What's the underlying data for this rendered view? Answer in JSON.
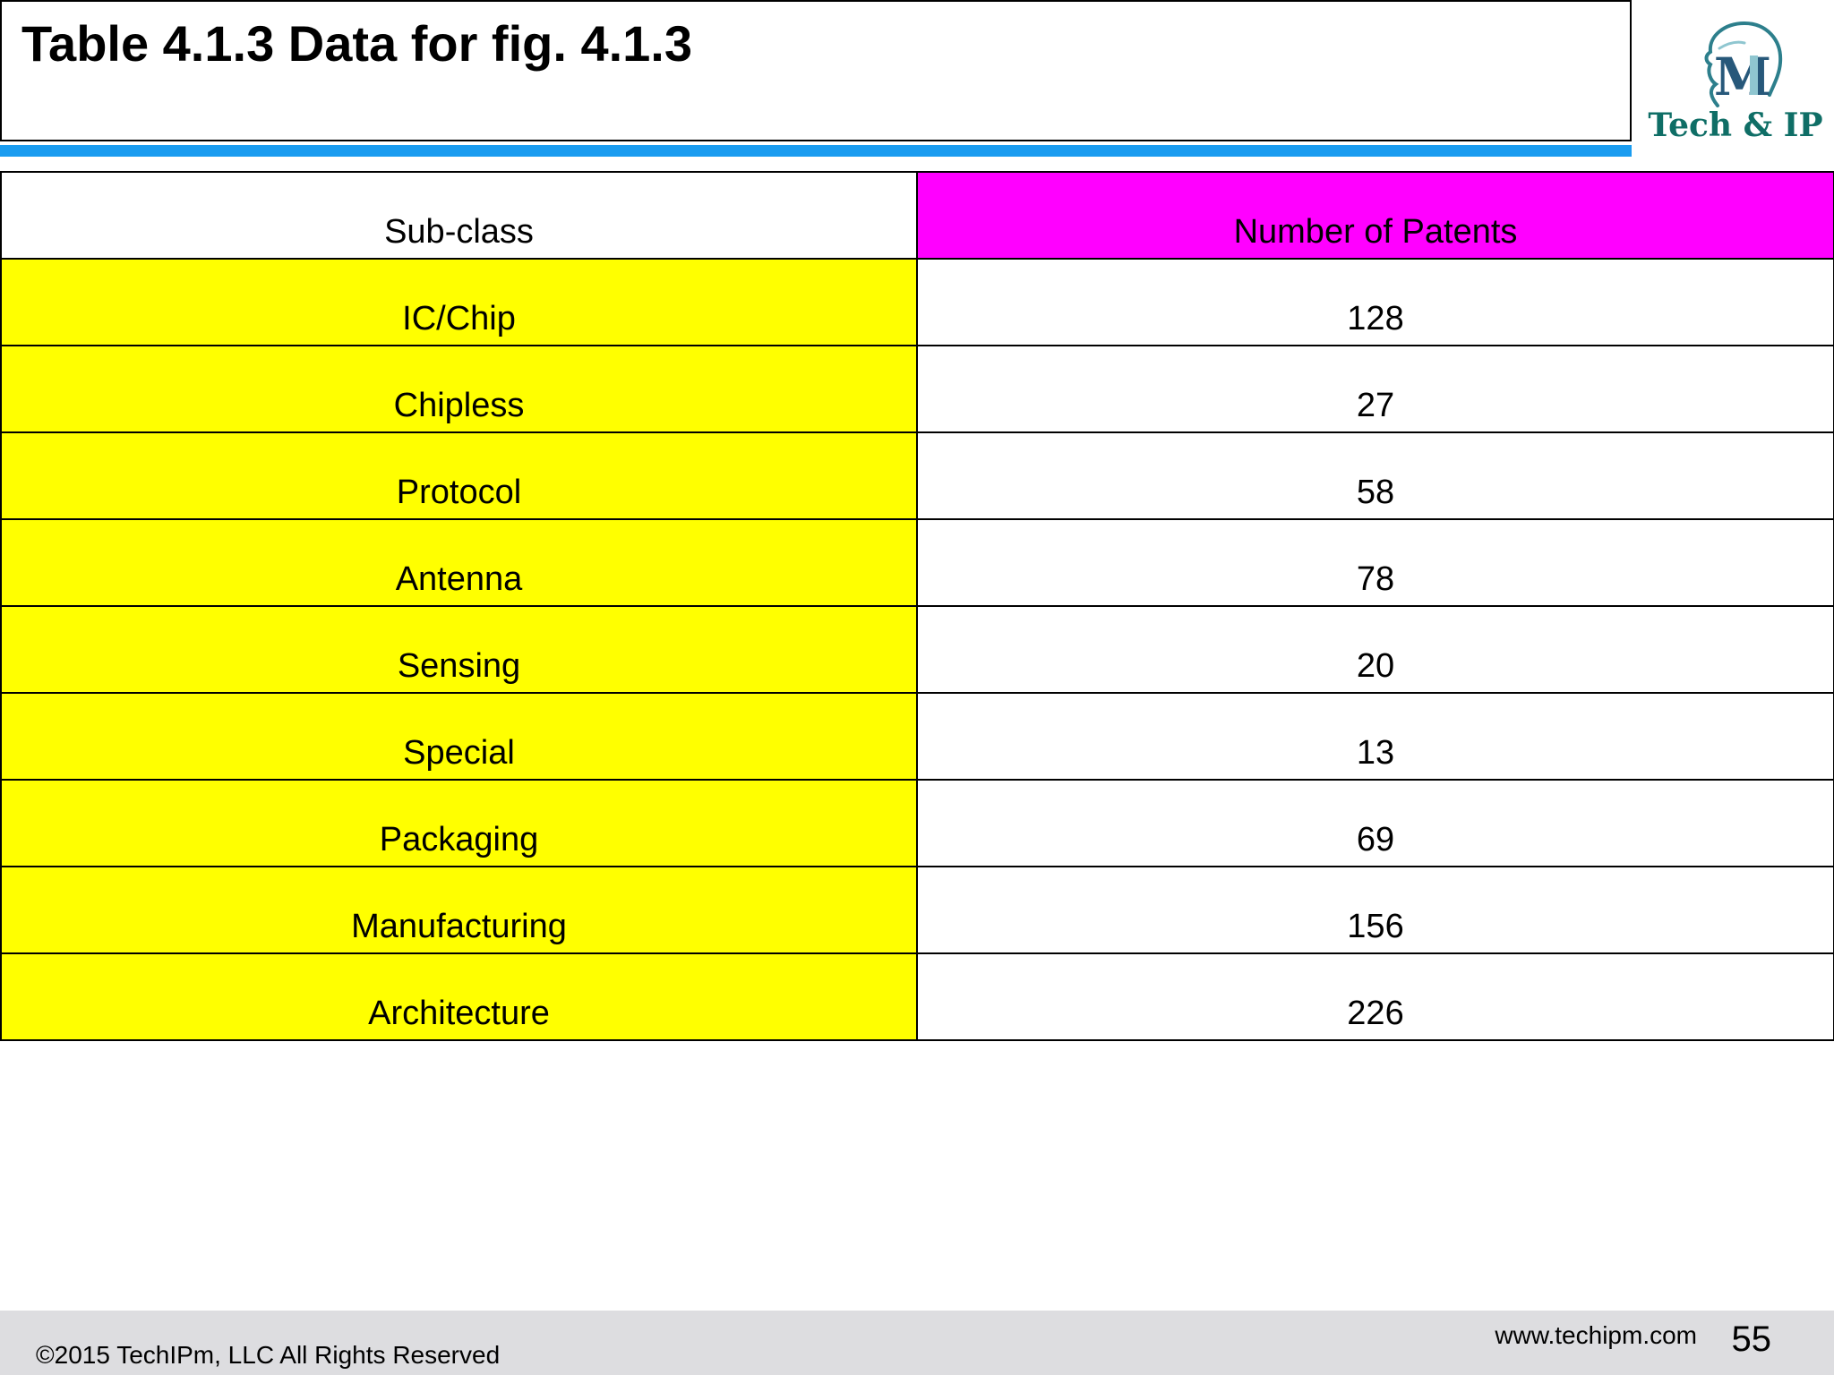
{
  "slide": {
    "title": "Table 4.1.3 Data for fig. 4.1.3"
  },
  "logo": {
    "text": "Tech & IP",
    "monogram": "M",
    "icon": "head-profile-logo-icon",
    "color": "#0f6e66"
  },
  "table": {
    "headers": [
      "Sub-class",
      "Number of Patents"
    ],
    "rows": [
      [
        "IC/Chip",
        "128"
      ],
      [
        "Chipless",
        "27"
      ],
      [
        "Protocol",
        "58"
      ],
      [
        "Antenna",
        "78"
      ],
      [
        "Sensing",
        "20"
      ],
      [
        "Special",
        "13"
      ],
      [
        "Packaging",
        "69"
      ],
      [
        "Manufacturing",
        "156"
      ],
      [
        "Architecture",
        "226"
      ]
    ],
    "colors": {
      "subclass_header": "#ffffff",
      "count_header": "#ff00ff",
      "subclass_cells": "#ffff00",
      "count_cells": "#ffffff"
    }
  },
  "footer": {
    "copyright": "©2015 TechIPm, LLC All Rights Reserved",
    "website": "www.techipm.com",
    "page_number": "55"
  },
  "colors": {
    "title_rule": "#1a9cf0",
    "footer_bg": "#dddde0"
  }
}
